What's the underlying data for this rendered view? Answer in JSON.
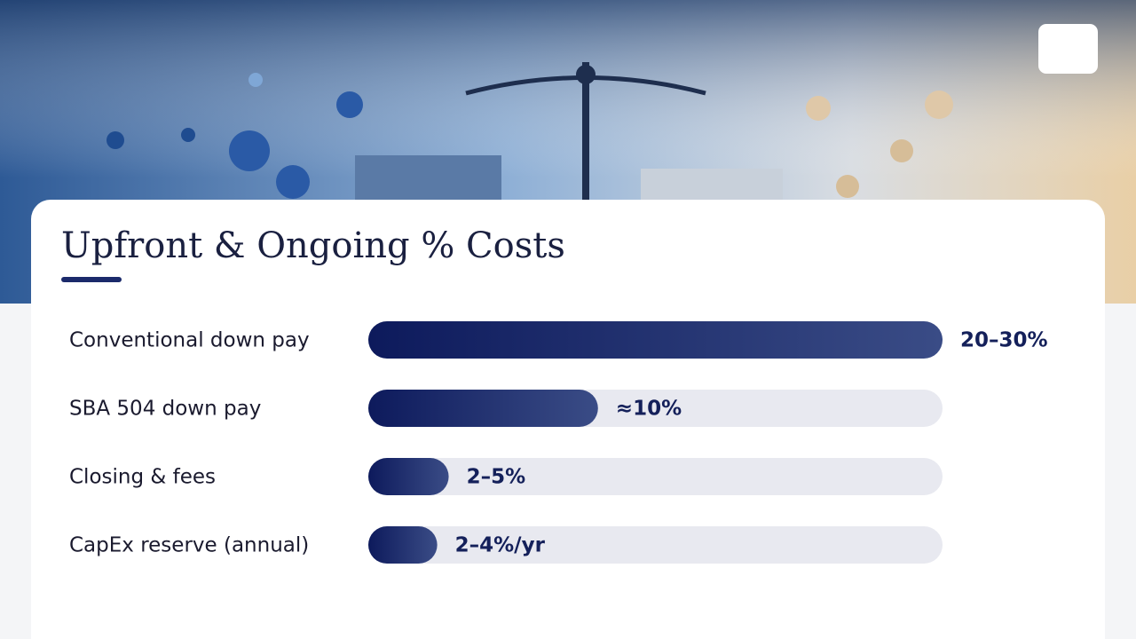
{
  "chart_data": {
    "type": "bar",
    "orientation": "horizontal",
    "title": "Upfront & Ongoing % Costs",
    "categories": [
      "Conventional down pay",
      "SBA 504 down pay",
      "Closing & fees",
      "CapEx reserve (annual)"
    ],
    "values": [
      25,
      10,
      3.5,
      3
    ],
    "value_labels": [
      "20–30%",
      "≈10%",
      "2–5%",
      "2–4%/yr"
    ],
    "xlim": [
      0,
      25
    ],
    "color": "#0d1a5c"
  }
}
